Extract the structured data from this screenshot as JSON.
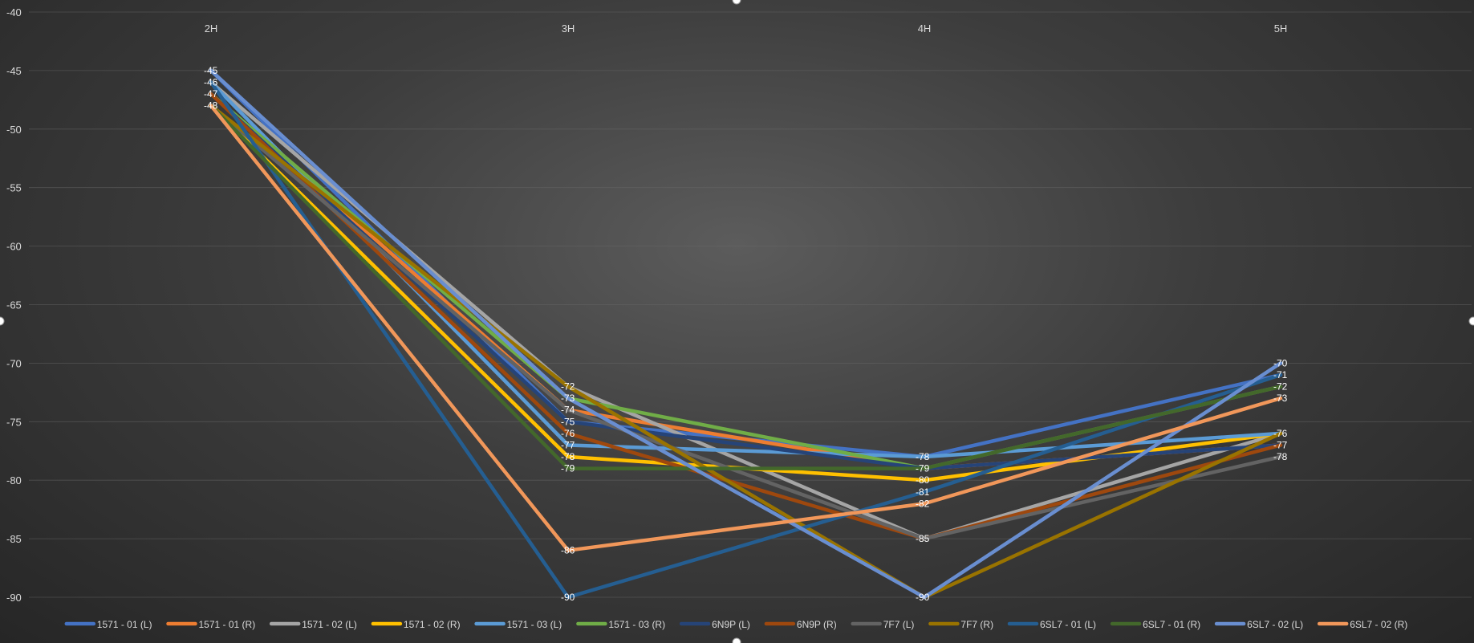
{
  "chart_data": {
    "type": "line",
    "title": "",
    "xlabel": "",
    "ylabel": "",
    "categories": [
      "2H",
      "3H",
      "4H",
      "5H"
    ],
    "ylim": [
      -90,
      -40
    ],
    "ytick_step": 5,
    "yticks": [
      "-40",
      "-45",
      "-50",
      "-55",
      "-60",
      "-65",
      "-70",
      "-75",
      "-80",
      "-85",
      "-90"
    ],
    "x_axis_position": "top",
    "grid": true,
    "legend_position": "bottom",
    "series": [
      {
        "name": "1571 - 01 (L)",
        "color": "#4472C4",
        "values": [
          -45,
          -75,
          -78,
          -71
        ]
      },
      {
        "name": "1571 - 01 (R)",
        "color": "#ED7D31",
        "values": [
          -47,
          -74,
          -79,
          -77
        ]
      },
      {
        "name": "1571 - 02 (L)",
        "color": "#A5A5A5",
        "values": [
          -46,
          -72,
          -85,
          -76
        ]
      },
      {
        "name": "1571 - 02 (R)",
        "color": "#FFC000",
        "values": [
          -48,
          -78,
          -80,
          -76
        ]
      },
      {
        "name": "1571 - 03 (L)",
        "color": "#5B9BD5",
        "values": [
          -46,
          -77,
          -78,
          -76
        ]
      },
      {
        "name": "1571 - 03 (R)",
        "color": "#70AD47",
        "values": [
          -47,
          -73,
          -79,
          -72
        ]
      },
      {
        "name": "6N9P (L)",
        "color": "#264478",
        "values": [
          -47,
          -75,
          -79,
          -77
        ]
      },
      {
        "name": "6N9P (R)",
        "color": "#9E480E",
        "values": [
          -47,
          -76,
          -85,
          -77
        ]
      },
      {
        "name": "7F7 (L)",
        "color": "#636363",
        "values": [
          -48,
          -74,
          -85,
          -78
        ]
      },
      {
        "name": "7F7 (R)",
        "color": "#997300",
        "values": [
          -48,
          -72,
          -90,
          -76
        ]
      },
      {
        "name": "6SL7 - 01 (L)",
        "color": "#255E91",
        "values": [
          -46,
          -90,
          -81,
          -71
        ]
      },
      {
        "name": "6SL7 - 01 (R)",
        "color": "#43682B",
        "values": [
          -48,
          -79,
          -79,
          -72
        ]
      },
      {
        "name": "6SL7 - 02 (L)",
        "color": "#698ED0",
        "values": [
          -45,
          -73,
          -90,
          -70
        ]
      },
      {
        "name": "6SL7 - 02 (R)",
        "color": "#F1975A",
        "values": [
          -48,
          -86,
          -82,
          -73
        ]
      }
    ]
  }
}
